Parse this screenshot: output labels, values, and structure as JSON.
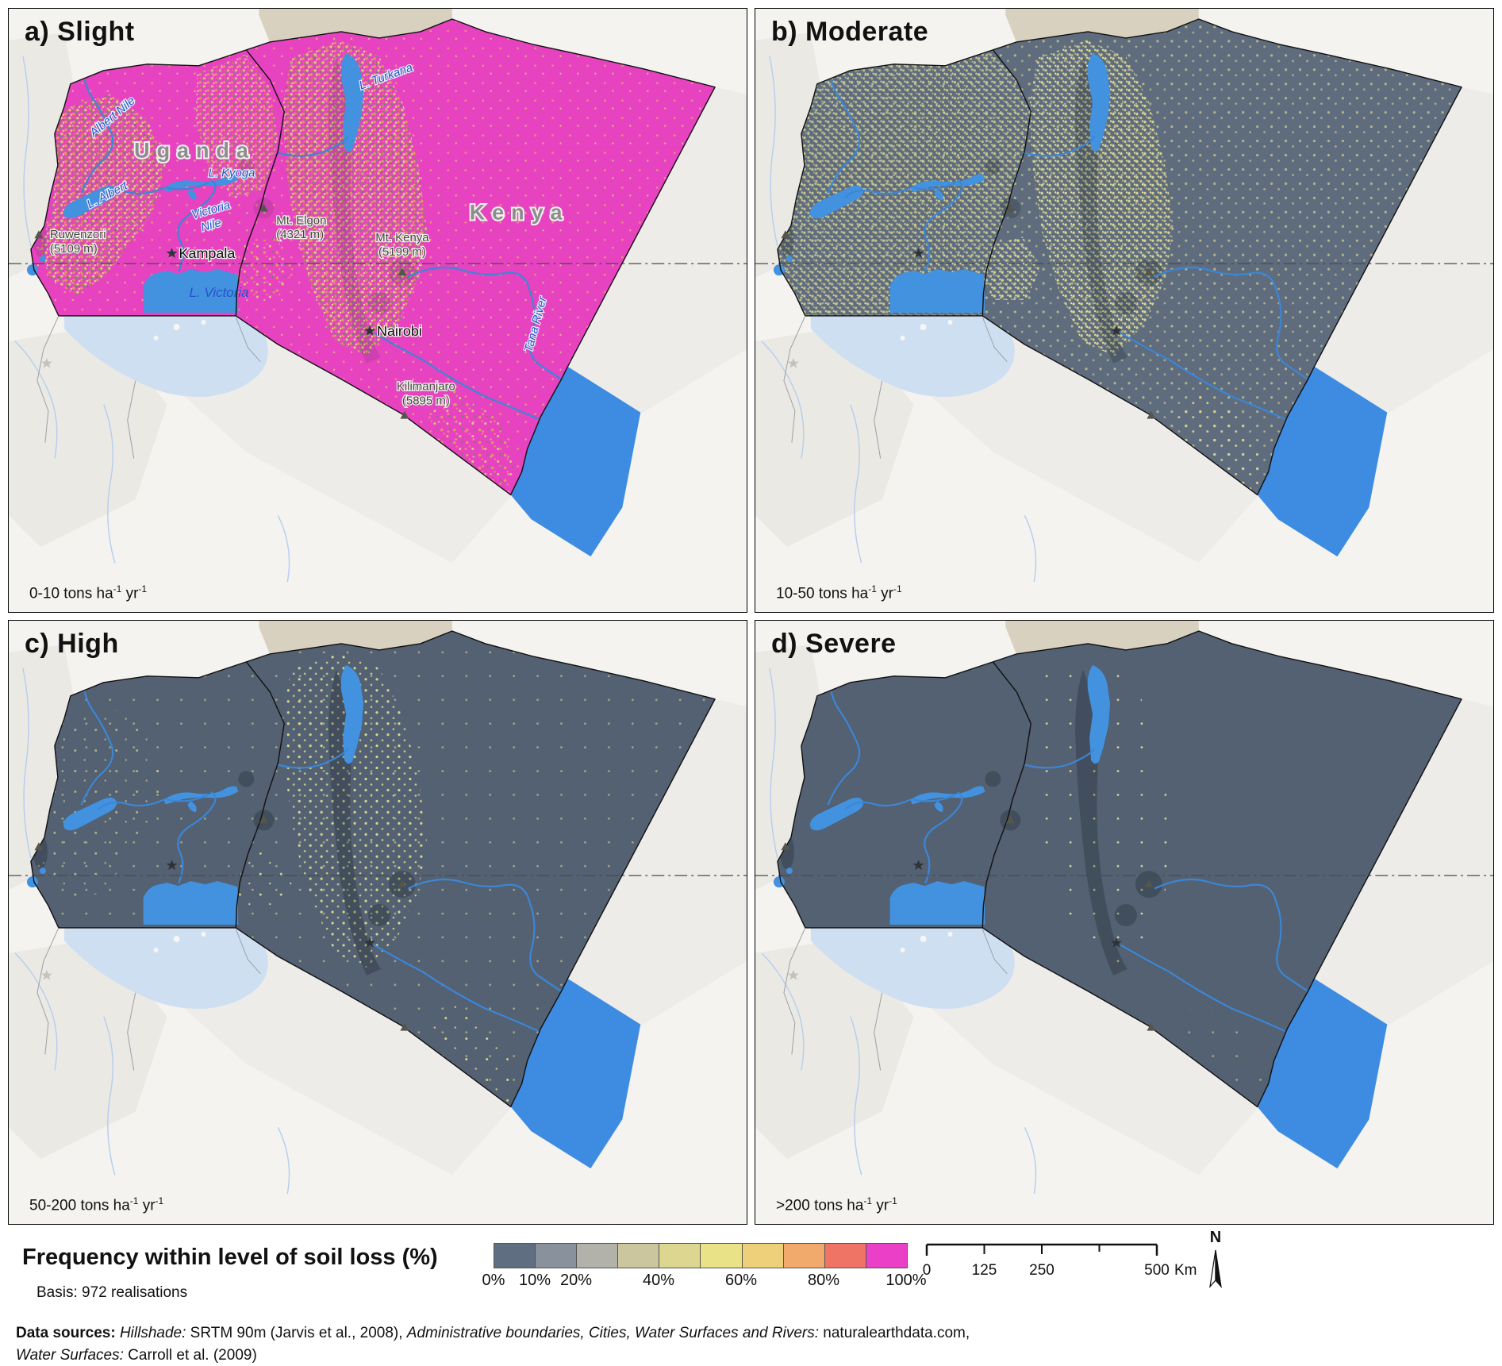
{
  "panels": [
    {
      "title": "a) Slight",
      "note": {
        "pre": "0-10 tons ha",
        "s1": "-1",
        "mid": " yr",
        "s2": "-1"
      }
    },
    {
      "title": "b) Moderate",
      "note": {
        "pre": "10-50 tons ha",
        "s1": "-1",
        "mid": " yr",
        "s2": "-1"
      }
    },
    {
      "title": "c) High",
      "note": {
        "pre": "50-200 tons ha",
        "s1": "-1",
        "mid": " yr",
        "s2": "-1"
      }
    },
    {
      "title": "d) Severe",
      "note": {
        "pre": ">200 tons ha",
        "s1": "-1",
        "mid": " yr",
        "s2": "-1"
      }
    }
  ],
  "map": {
    "uganda": "Uganda",
    "kenya": "Kenya",
    "albert_nile": "Albert Nile",
    "l_turkana": "L. Turkana",
    "l_kyoga": "L. Kyoga",
    "l_albert": "L. Albert",
    "victoria_nile_1": "Victoria",
    "victoria_nile_2": "Nile",
    "l_victoria": "L. Victoria",
    "tana_river": "Tana River",
    "kampala": "Kampala",
    "nairobi": "Nairobi",
    "mt_elgon_1": "Mt. Elgon",
    "mt_elgon_2": "(4321 m)",
    "mt_kenya_1": "Mt. Kenya",
    "mt_kenya_2": "(5199 m)",
    "ruwenzori_1": "Ruwenzori",
    "ruwenzori_2": "(5109 m)",
    "kilimanjaro_1": "Kilimanjaro",
    "kilimanjaro_2": "(5895 m)"
  },
  "legend": {
    "title": "Frequency within level of soil loss (%)",
    "basis": "Basis: 972 realisations",
    "ramp_colors": [
      "#5f6e80",
      "#88919c",
      "#b2b2aa",
      "#cbc69d",
      "#dcd690",
      "#e9e287",
      "#eed07b",
      "#f2a96c",
      "#ef7465",
      "#ea3fc6"
    ],
    "ticks": [
      {
        "label": "0%",
        "pos": 0
      },
      {
        "label": "10%",
        "pos": 10
      },
      {
        "label": "20%",
        "pos": 20
      },
      {
        "label": "40%",
        "pos": 40
      },
      {
        "label": "60%",
        "pos": 60
      },
      {
        "label": "80%",
        "pos": 80
      },
      {
        "label": "100%",
        "pos": 100
      }
    ]
  },
  "scalebar": {
    "labels": [
      "0",
      "125",
      "250",
      "500"
    ],
    "unit": "Km"
  },
  "north": {
    "label": "N"
  },
  "sources": {
    "label": "Data sources: ",
    "hillshade_label": "Hillshade:",
    "hillshade_val": " SRTM 90m (Jarvis et al., 2008), ",
    "admin_label": "Administrative boundaries, Cities, Water Surfaces and Rivers:",
    "admin_val": " naturalearthdata.com,",
    "water_label": "Water Surfaces:",
    "water_val": " Carroll et al. (2009)"
  },
  "colors": {
    "panel_a": "#e743c1",
    "panel_b": "#5e6c7e",
    "panel_c": "#536172",
    "panel_d": "#536172",
    "lake": "#4292e0",
    "ocean": "#3d8ce2",
    "river": "#3b86d6",
    "pale_water": "#cfdff2",
    "outside_land": "#f4f3f0",
    "north_strip": "#d9d1c0"
  }
}
